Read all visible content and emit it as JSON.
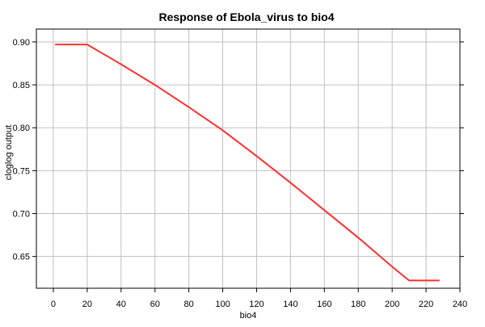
{
  "chart_data": {
    "type": "line",
    "title": "Response of Ebola_virus to bio4",
    "xlabel": "bio4",
    "ylabel": "cloglog output",
    "xlim": [
      -10,
      240
    ],
    "ylim": [
      0.613,
      0.915
    ],
    "grid": true,
    "x_ticks": [
      0,
      20,
      40,
      60,
      80,
      100,
      120,
      140,
      160,
      180,
      200,
      220,
      240
    ],
    "x_tick_labels": [
      "0",
      "20",
      "40",
      "60",
      "80",
      "100",
      "120",
      "140",
      "160",
      "180",
      "200",
      "220",
      "240"
    ],
    "y_ticks": [
      0.65,
      0.7,
      0.75,
      0.8,
      0.85,
      0.9
    ],
    "y_tick_labels": [
      "0.65",
      "0.70",
      "0.75",
      "0.80",
      "0.85",
      "0.90"
    ],
    "series": [
      {
        "color": "#ff3030",
        "x": [
          1,
          20,
          40,
          60,
          80,
          100,
          120,
          140,
          160,
          180,
          200,
          210,
          228
        ],
        "y": [
          0.897,
          0.897,
          0.874,
          0.85,
          0.824,
          0.797,
          0.767,
          0.736,
          0.704,
          0.672,
          0.638,
          0.622,
          0.622
        ]
      }
    ]
  }
}
